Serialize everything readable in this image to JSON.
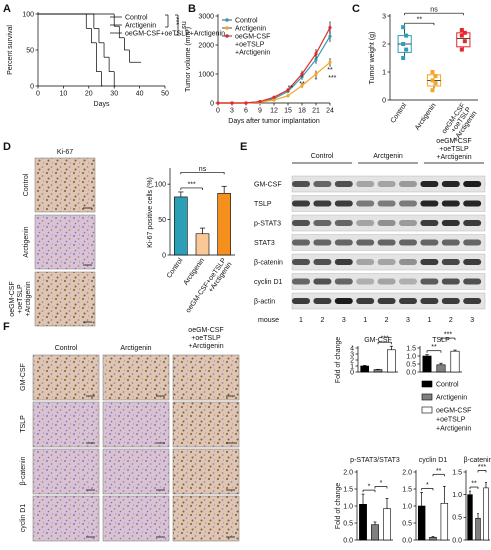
{
  "figure": {
    "panel_labels": [
      "A",
      "B",
      "C",
      "D",
      "E",
      "F"
    ],
    "d_ihc": {
      "title": "Ki-67",
      "rows": [
        "Control",
        "Arctigenin",
        [
          "oeGM-CSF",
          "+oeTSLP",
          "+Arctigenin"
        ]
      ]
    },
    "e_blot": {
      "groups": [
        "Control",
        "Arctgenin",
        [
          "oeGM-CSF",
          "+oeTSLP",
          "+Arctigenin"
        ]
      ],
      "rows": [
        "GM-CSF",
        "TSLP",
        "p-STAT3",
        "STAT3",
        "β-catenin",
        "cyclin D1",
        "β-actin"
      ],
      "mouse_label": "mouse",
      "mice": [
        1,
        2,
        3,
        1,
        2,
        3,
        1,
        2,
        3
      ]
    },
    "f_ihc": {
      "columns": [
        "Control",
        "Arctigenin",
        [
          "oeGM-CSF",
          "+oeTSLP",
          "+Arctigenin"
        ]
      ],
      "rows": [
        "GM-CSF",
        "TSLP",
        "β-catenin",
        "cyclin D1"
      ]
    },
    "f_legend": {
      "names": [
        "Control",
        "Arctigenin",
        [
          "oeGM-CSF",
          "+oeTSLP",
          "+Arctigenin"
        ]
      ],
      "colors": [
        "#000000",
        "#808080",
        "#ffffff"
      ],
      "ylabel": "Fold of change"
    }
  },
  "chart_data": [
    {
      "type": "step",
      "xlabel": "Days",
      "ylabel": "Percent survival",
      "xlim": [
        0,
        50
      ],
      "xticks": [
        0,
        10,
        20,
        30,
        40,
        50
      ],
      "ylim": [
        0,
        100
      ],
      "yticks": [
        0,
        50,
        100
      ],
      "legend": "upper right",
      "annotations": [
        "***",
        "ns"
      ],
      "series": [
        {
          "name": "Control",
          "color": "#2a9fb5",
          "x": [
            0,
            22,
            24,
            26,
            28,
            30
          ],
          "values": [
            100,
            80,
            60,
            40,
            20,
            0
          ]
        },
        {
          "name": "Arctigenin",
          "color": "#f5a623",
          "x": [
            0,
            30,
            32,
            34,
            36,
            40
          ],
          "values": [
            100,
            83,
            67,
            50,
            33,
            33
          ]
        },
        {
          "name": "oeGM-CSF+oeTSLP+Arctigenin",
          "color": "#e8262a",
          "x": [
            0,
            19,
            21,
            23,
            25
          ],
          "values": [
            100,
            80,
            60,
            20,
            0
          ]
        }
      ]
    },
    {
      "type": "line",
      "xlabel": "Days after tumor implantation",
      "ylabel": "Tumor volume (mm³)",
      "x": [
        0,
        3,
        6,
        9,
        12,
        15,
        18,
        21,
        24
      ],
      "xlim": [
        0,
        24
      ],
      "xticks": [
        0,
        3,
        6,
        9,
        12,
        15,
        18,
        21,
        24
      ],
      "ylim": [
        0,
        3000
      ],
      "yticks": [
        0,
        1000,
        2000,
        3000
      ],
      "legend": "upper left",
      "annotations": [
        "**",
        "**",
        "*",
        "**",
        "***"
      ],
      "series": [
        {
          "name": "Control",
          "color": "#2a9fb5",
          "values": [
            0,
            0,
            0,
            50,
            150,
            400,
            900,
            1500,
            2300
          ],
          "errors": [
            0,
            0,
            0,
            10,
            30,
            60,
            100,
            150,
            200
          ]
        },
        {
          "name": "Arctigenin",
          "color": "#f5a623",
          "values": [
            0,
            0,
            0,
            30,
            100,
            250,
            600,
            1000,
            1400
          ],
          "errors": [
            0,
            0,
            0,
            10,
            20,
            50,
            80,
            120,
            150
          ]
        },
        {
          "name": [
            "oeGM-CSF",
            "+oeTSLP",
            "+Arctigenin"
          ],
          "color": "#e8262a",
          "values": [
            0,
            0,
            0,
            50,
            200,
            450,
            1000,
            1700,
            2600
          ],
          "errors": [
            0,
            0,
            0,
            10,
            30,
            60,
            110,
            160,
            220
          ]
        }
      ]
    },
    {
      "type": "box",
      "ylabel": "Tumor weight (g)",
      "ylim": [
        0,
        3
      ],
      "yticks": [
        0,
        1,
        2,
        3
      ],
      "categories": [
        "Control",
        "Arctigenin",
        [
          "oeGM-CSF",
          "+oeTSLP",
          "+Arctigenin"
        ]
      ],
      "colors": [
        "#2a9fb5",
        "#f5a623",
        "#e8262a"
      ],
      "min": [
        1.5,
        0.35,
        1.8
      ],
      "q1": [
        1.7,
        0.5,
        1.9
      ],
      "median": [
        2.0,
        0.7,
        2.2
      ],
      "q3": [
        2.3,
        0.9,
        2.4
      ],
      "max": [
        2.6,
        1.0,
        2.5
      ],
      "points": [
        [
          1.5,
          1.8,
          2.0,
          2.3,
          2.6
        ],
        [
          0.35,
          0.6,
          0.7,
          0.85,
          1.0
        ],
        [
          1.8,
          2.1,
          2.3,
          2.4,
          2.5
        ]
      ],
      "annotations": [
        "**",
        "ns"
      ]
    },
    {
      "type": "bar",
      "ylabel": "Ki-67 positive cells (%)",
      "ylim": [
        0,
        120
      ],
      "yticks": [
        0,
        50,
        100
      ],
      "categories": [
        "Control",
        "Arctigenin",
        [
          "oeGM-CSF+oeTSLP",
          "+Arctigenin"
        ]
      ],
      "values": [
        82,
        30,
        87
      ],
      "errors": [
        7,
        8,
        10
      ],
      "colors": [
        "#2a9fb5",
        "#f8c898",
        "#f5901e"
      ],
      "annotations": [
        "***",
        "ns"
      ]
    },
    {
      "type": "bar",
      "title": "GM-CSF",
      "ylim": [
        0,
        4
      ],
      "yticks": [
        0,
        1,
        2,
        3,
        4
      ],
      "values": [
        1.0,
        0.4,
        3.7
      ],
      "errors": [
        0.1,
        0.05,
        0.6
      ],
      "colors": [
        "#000000",
        "#808080",
        "#ffffff"
      ],
      "annotations": [
        "***"
      ]
    },
    {
      "type": "bar",
      "title": "TSLP",
      "ylim": [
        0,
        1.5
      ],
      "yticks": [
        {
          "value": 0,
          "label": "0.0"
        },
        0.5,
        {
          "value": 1,
          "label": "1.0"
        },
        1.5
      ],
      "values": [
        1.0,
        0.45,
        1.3
      ],
      "errors": [
        0.08,
        0.1,
        0.07
      ],
      "colors": [
        "#000000",
        "#808080",
        "#ffffff"
      ],
      "annotations": [
        "**",
        "***"
      ]
    },
    {
      "type": "bar",
      "title": "p-STAT3/STAT3",
      "ylim": [
        0,
        2
      ],
      "yticks": [
        {
          "value": 0,
          "label": "0.0"
        },
        0.5,
        {
          "value": 1,
          "label": "1.0"
        },
        1.5,
        {
          "value": 2,
          "label": "2.0"
        }
      ],
      "values": [
        1.05,
        0.45,
        0.92
      ],
      "errors": [
        0.3,
        0.08,
        0.3
      ],
      "colors": [
        "#000000",
        "#808080",
        "#ffffff"
      ],
      "annotations": [
        "*",
        "*"
      ]
    },
    {
      "type": "bar",
      "title": "cyclin D1",
      "ylim": [
        0,
        2
      ],
      "yticks": [
        {
          "value": 0,
          "label": "0.0"
        },
        0.5,
        {
          "value": 1,
          "label": "1.0"
        },
        1.5,
        {
          "value": 2,
          "label": "2.0"
        }
      ],
      "values": [
        1.0,
        0.08,
        1.08
      ],
      "errors": [
        0.4,
        0.02,
        0.5
      ],
      "colors": [
        "#000000",
        "#808080",
        "#ffffff"
      ],
      "annotations": [
        "*",
        "**"
      ]
    },
    {
      "type": "bar",
      "title": "β-catenin",
      "ylim": [
        0,
        1.5
      ],
      "yticks": [
        {
          "value": 0,
          "label": "0.0"
        },
        0.5,
        {
          "value": 1,
          "label": "1.0"
        },
        1.5
      ],
      "values": [
        1.0,
        0.48,
        1.15
      ],
      "errors": [
        0.08,
        0.1,
        0.12
      ],
      "colors": [
        "#000000",
        "#808080",
        "#ffffff"
      ],
      "annotations": [
        "**",
        "***"
      ]
    }
  ]
}
